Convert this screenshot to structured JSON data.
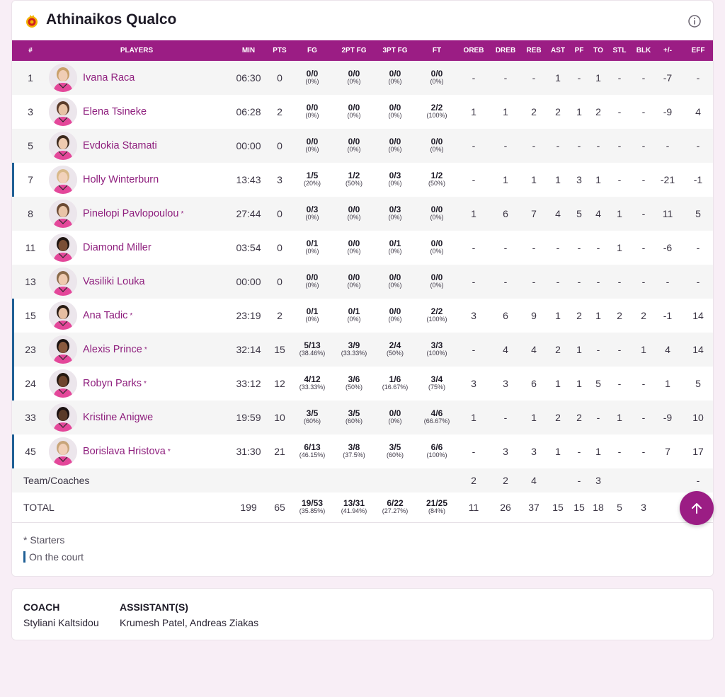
{
  "team": {
    "name": "Athinaikos Qualco"
  },
  "columns": [
    "#",
    "PLAYERS",
    "MIN",
    "PTS",
    "FG",
    "2PT FG",
    "3PT FG",
    "FT",
    "OREB",
    "DREB",
    "REB",
    "AST",
    "PF",
    "TO",
    "STL",
    "BLK",
    "+/-",
    "EFF"
  ],
  "players": [
    {
      "num": "1",
      "name": "Ivana Raca",
      "starter": false,
      "on_court": false,
      "min": "06:30",
      "pts": "0",
      "fg": "0/0",
      "fg_pct": "(0%)",
      "fg2": "0/0",
      "fg2_pct": "(0%)",
      "fg3": "0/0",
      "fg3_pct": "(0%)",
      "ft": "0/0",
      "ft_pct": "(0%)",
      "oreb": "-",
      "dreb": "-",
      "reb": "-",
      "ast": "1",
      "pf": "-",
      "to": "1",
      "stl": "-",
      "blk": "-",
      "pm": "-7",
      "eff": "-"
    },
    {
      "num": "3",
      "name": "Elena Tsineke",
      "starter": false,
      "on_court": false,
      "min": "06:28",
      "pts": "2",
      "fg": "0/0",
      "fg_pct": "(0%)",
      "fg2": "0/0",
      "fg2_pct": "(0%)",
      "fg3": "0/0",
      "fg3_pct": "(0%)",
      "ft": "2/2",
      "ft_pct": "(100%)",
      "oreb": "1",
      "dreb": "1",
      "reb": "2",
      "ast": "2",
      "pf": "1",
      "to": "2",
      "stl": "-",
      "blk": "-",
      "pm": "-9",
      "eff": "4"
    },
    {
      "num": "5",
      "name": "Evdokia Stamati",
      "starter": false,
      "on_court": false,
      "min": "00:00",
      "pts": "0",
      "fg": "0/0",
      "fg_pct": "(0%)",
      "fg2": "0/0",
      "fg2_pct": "(0%)",
      "fg3": "0/0",
      "fg3_pct": "(0%)",
      "ft": "0/0",
      "ft_pct": "(0%)",
      "oreb": "-",
      "dreb": "-",
      "reb": "-",
      "ast": "-",
      "pf": "-",
      "to": "-",
      "stl": "-",
      "blk": "-",
      "pm": "-",
      "eff": "-"
    },
    {
      "num": "7",
      "name": "Holly Winterburn",
      "starter": false,
      "on_court": true,
      "min": "13:43",
      "pts": "3",
      "fg": "1/5",
      "fg_pct": "(20%)",
      "fg2": "1/2",
      "fg2_pct": "(50%)",
      "fg3": "0/3",
      "fg3_pct": "(0%)",
      "ft": "1/2",
      "ft_pct": "(50%)",
      "oreb": "-",
      "dreb": "1",
      "reb": "1",
      "ast": "1",
      "pf": "3",
      "to": "1",
      "stl": "-",
      "blk": "-",
      "pm": "-21",
      "eff": "-1"
    },
    {
      "num": "8",
      "name": "Pinelopi Pavlopoulou",
      "starter": true,
      "on_court": false,
      "min": "27:44",
      "pts": "0",
      "fg": "0/3",
      "fg_pct": "(0%)",
      "fg2": "0/0",
      "fg2_pct": "(0%)",
      "fg3": "0/3",
      "fg3_pct": "(0%)",
      "ft": "0/0",
      "ft_pct": "(0%)",
      "oreb": "1",
      "dreb": "6",
      "reb": "7",
      "ast": "4",
      "pf": "5",
      "to": "4",
      "stl": "1",
      "blk": "-",
      "pm": "11",
      "eff": "5"
    },
    {
      "num": "11",
      "name": "Diamond Miller",
      "starter": false,
      "on_court": false,
      "min": "03:54",
      "pts": "0",
      "fg": "0/1",
      "fg_pct": "(0%)",
      "fg2": "0/0",
      "fg2_pct": "(0%)",
      "fg3": "0/1",
      "fg3_pct": "(0%)",
      "ft": "0/0",
      "ft_pct": "(0%)",
      "oreb": "-",
      "dreb": "-",
      "reb": "-",
      "ast": "-",
      "pf": "-",
      "to": "-",
      "stl": "1",
      "blk": "-",
      "pm": "-6",
      "eff": "-"
    },
    {
      "num": "13",
      "name": "Vasiliki Louka",
      "starter": false,
      "on_court": false,
      "min": "00:00",
      "pts": "0",
      "fg": "0/0",
      "fg_pct": "(0%)",
      "fg2": "0/0",
      "fg2_pct": "(0%)",
      "fg3": "0/0",
      "fg3_pct": "(0%)",
      "ft": "0/0",
      "ft_pct": "(0%)",
      "oreb": "-",
      "dreb": "-",
      "reb": "-",
      "ast": "-",
      "pf": "-",
      "to": "-",
      "stl": "-",
      "blk": "-",
      "pm": "-",
      "eff": "-"
    },
    {
      "num": "15",
      "name": "Ana Tadic",
      "starter": true,
      "on_court": true,
      "min": "23:19",
      "pts": "2",
      "fg": "0/1",
      "fg_pct": "(0%)",
      "fg2": "0/1",
      "fg2_pct": "(0%)",
      "fg3": "0/0",
      "fg3_pct": "(0%)",
      "ft": "2/2",
      "ft_pct": "(100%)",
      "oreb": "3",
      "dreb": "6",
      "reb": "9",
      "ast": "1",
      "pf": "2",
      "to": "1",
      "stl": "2",
      "blk": "2",
      "pm": "-1",
      "eff": "14"
    },
    {
      "num": "23",
      "name": "Alexis Prince",
      "starter": true,
      "on_court": true,
      "min": "32:14",
      "pts": "15",
      "fg": "5/13",
      "fg_pct": "(38.46%)",
      "fg2": "3/9",
      "fg2_pct": "(33.33%)",
      "fg3": "2/4",
      "fg3_pct": "(50%)",
      "ft": "3/3",
      "ft_pct": "(100%)",
      "oreb": "-",
      "dreb": "4",
      "reb": "4",
      "ast": "2",
      "pf": "1",
      "to": "-",
      "stl": "-",
      "blk": "1",
      "pm": "4",
      "eff": "14"
    },
    {
      "num": "24",
      "name": "Robyn Parks",
      "starter": true,
      "on_court": true,
      "min": "33:12",
      "pts": "12",
      "fg": "4/12",
      "fg_pct": "(33.33%)",
      "fg2": "3/6",
      "fg2_pct": "(50%)",
      "fg3": "1/6",
      "fg3_pct": "(16.67%)",
      "ft": "3/4",
      "ft_pct": "(75%)",
      "oreb": "3",
      "dreb": "3",
      "reb": "6",
      "ast": "1",
      "pf": "1",
      "to": "5",
      "stl": "-",
      "blk": "-",
      "pm": "1",
      "eff": "5"
    },
    {
      "num": "33",
      "name": "Kristine Anigwe",
      "starter": false,
      "on_court": false,
      "min": "19:59",
      "pts": "10",
      "fg": "3/5",
      "fg_pct": "(60%)",
      "fg2": "3/5",
      "fg2_pct": "(60%)",
      "fg3": "0/0",
      "fg3_pct": "(0%)",
      "ft": "4/6",
      "ft_pct": "(66.67%)",
      "oreb": "1",
      "dreb": "-",
      "reb": "1",
      "ast": "2",
      "pf": "2",
      "to": "-",
      "stl": "1",
      "blk": "-",
      "pm": "-9",
      "eff": "10"
    },
    {
      "num": "45",
      "name": "Borislava Hristova",
      "starter": true,
      "on_court": true,
      "min": "31:30",
      "pts": "21",
      "fg": "6/13",
      "fg_pct": "(46.15%)",
      "fg2": "3/8",
      "fg2_pct": "(37.5%)",
      "fg3": "3/5",
      "fg3_pct": "(60%)",
      "ft": "6/6",
      "ft_pct": "(100%)",
      "oreb": "-",
      "dreb": "3",
      "reb": "3",
      "ast": "1",
      "pf": "-",
      "to": "1",
      "stl": "-",
      "blk": "-",
      "pm": "7",
      "eff": "17"
    }
  ],
  "team_row": {
    "label": "Team/Coaches",
    "oreb": "2",
    "dreb": "2",
    "reb": "4",
    "ast": "",
    "pf": "-",
    "to": "3",
    "stl": "",
    "blk": "",
    "pm": "",
    "eff": "-"
  },
  "total_row": {
    "label": "TOTAL",
    "min": "199",
    "pts": "65",
    "fg": "19/53",
    "fg_pct": "(35.85%)",
    "fg2": "13/31",
    "fg2_pct": "(41.94%)",
    "fg3": "6/22",
    "fg3_pct": "(27.27%)",
    "ft": "21/25",
    "ft_pct": "(84%)",
    "oreb": "11",
    "dreb": "26",
    "reb": "37",
    "ast": "15",
    "pf": "15",
    "to": "18",
    "stl": "5",
    "blk": "3",
    "pm": "",
    "eff": ""
  },
  "legend": {
    "starters": "* Starters",
    "on_court": "On the court"
  },
  "star_symbol": "*",
  "coach": {
    "coach_label": "COACH",
    "coach_name": "Styliani Kaltsidou",
    "assistant_label": "ASSISTANT(S)",
    "assistant_names": "Krumesh Patel, Andreas Ziakas"
  },
  "colors": {
    "accent": "#9b1d84",
    "name_link": "#8e1e7d",
    "on_court_marker": "#1f5f95",
    "page_bg": "#f8eef6"
  },
  "icons": {
    "team_logo": "team-logo-icon",
    "info": "info-icon",
    "scroll_top": "arrow-up-icon"
  }
}
